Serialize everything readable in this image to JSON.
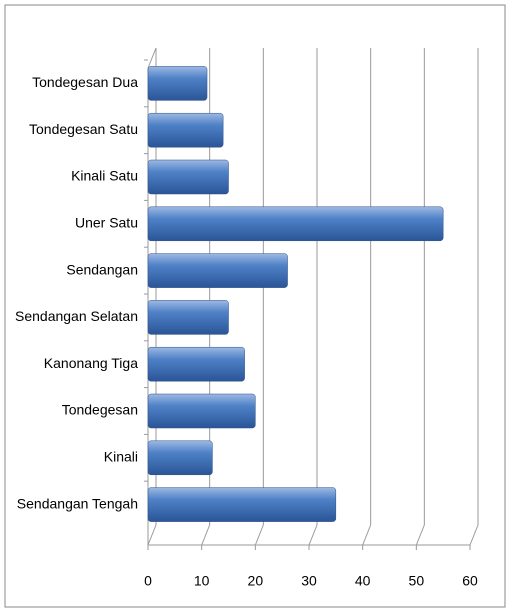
{
  "chart_data": {
    "type": "bar",
    "orientation": "horizontal",
    "categories": [
      "Tondegesan  Dua",
      "Tondegesan  Satu",
      "Kinali Satu",
      "Uner Satu",
      "Sendangan",
      "Sendangan Selatan",
      "Kanonang Tiga",
      "Tondegesan",
      "Kinali",
      "Sendangan Tengah"
    ],
    "values": [
      11,
      14,
      15,
      55,
      26,
      15,
      18,
      20,
      12,
      35
    ],
    "color": "#4a7ebb",
    "xlim": [
      0,
      60
    ],
    "xticks": [
      0,
      10,
      20,
      30,
      40,
      50,
      60
    ],
    "grid": true
  }
}
